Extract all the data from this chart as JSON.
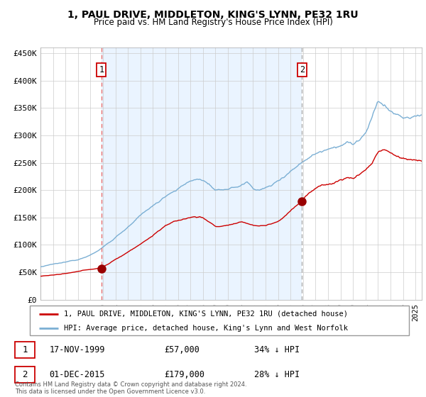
{
  "title": "1, PAUL DRIVE, MIDDLETON, KING'S LYNN, PE32 1RU",
  "subtitle": "Price paid vs. HM Land Registry's House Price Index (HPI)",
  "hpi_label": "HPI: Average price, detached house, King's Lynn and West Norfolk",
  "property_label": "1, PAUL DRIVE, MIDDLETON, KING'S LYNN, PE32 1RU (detached house)",
  "sale1_date": "17-NOV-1999",
  "sale1_price": "£57,000",
  "sale1_hpi": "34% ↓ HPI",
  "sale1_year": 1999.88,
  "sale1_value": 57000,
  "sale2_date": "01-DEC-2015",
  "sale2_price": "£179,000",
  "sale2_hpi": "28% ↓ HPI",
  "sale2_year": 2015.92,
  "sale2_value": 179000,
  "hpi_color": "#7bafd4",
  "price_color": "#cc0000",
  "dashed_line1_color": "#e87070",
  "dashed_line2_color": "#aaaaaa",
  "bg_shaded_color": "#ddeeff",
  "footer": "Contains HM Land Registry data © Crown copyright and database right 2024.\nThis data is licensed under the Open Government Licence v3.0.",
  "ylim": [
    0,
    460000
  ],
  "yticks": [
    0,
    50000,
    100000,
    150000,
    200000,
    250000,
    300000,
    350000,
    400000,
    450000
  ],
  "ytick_labels": [
    "£0",
    "£50K",
    "£100K",
    "£150K",
    "£200K",
    "£250K",
    "£300K",
    "£350K",
    "£400K",
    "£450K"
  ],
  "xstart": 1995.0,
  "xend": 2025.5
}
